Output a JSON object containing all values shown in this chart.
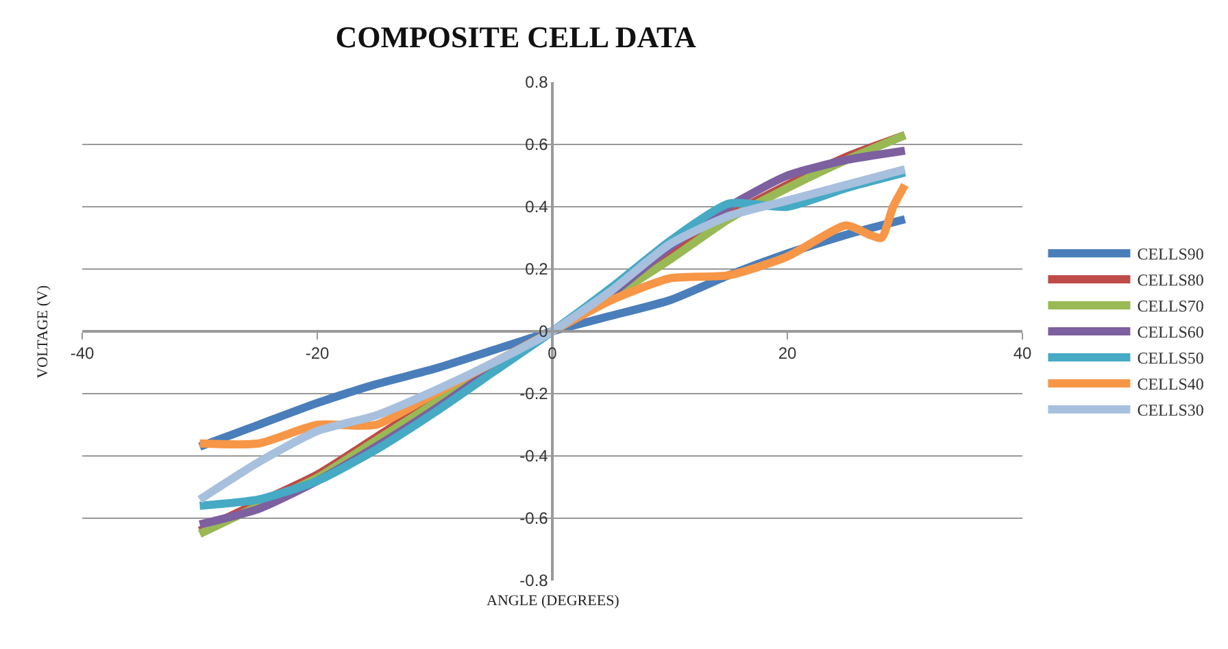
{
  "chart_data": {
    "type": "line",
    "title": "COMPOSITE CELL DATA",
    "xlabel": "ANGLE (DEGREES)",
    "ylabel": "VOLTAGE (V)",
    "xlim": [
      -40,
      40
    ],
    "xticks": [
      -40,
      -20,
      0,
      20,
      40
    ],
    "ylim": [
      -0.8,
      0.8
    ],
    "yticks": [
      -0.8,
      -0.6,
      -0.4,
      -0.2,
      0,
      0.2,
      0.4,
      0.6,
      0.8
    ],
    "grid": "y",
    "legend": "right",
    "marker": "none",
    "line_style": "solid",
    "x": [
      -30,
      -25,
      -20,
      -15,
      -10,
      -5,
      0,
      5,
      10,
      15,
      20,
      25,
      30
    ],
    "series": [
      {
        "name": "CELLS90",
        "color": "#4a7ebb",
        "values": [
          -0.37,
          -0.3,
          -0.23,
          -0.17,
          -0.12,
          -0.06,
          0,
          0.05,
          0.1,
          0.18,
          0.25,
          0.31,
          0.36
        ]
      },
      {
        "name": "CELLS80",
        "color": "#be4b48",
        "values": [
          -0.64,
          -0.55,
          -0.46,
          -0.34,
          -0.22,
          -0.11,
          0,
          0.12,
          0.24,
          0.37,
          0.47,
          0.56,
          0.63
        ]
      },
      {
        "name": "CELLS70",
        "color": "#98b954",
        "values": [
          -0.65,
          -0.56,
          -0.47,
          -0.35,
          -0.23,
          -0.11,
          0,
          0.11,
          0.23,
          0.36,
          0.46,
          0.55,
          0.63
        ]
      },
      {
        "name": "CELLS60",
        "color": "#7d60a0",
        "values": [
          -0.62,
          -0.57,
          -0.48,
          -0.37,
          -0.25,
          -0.12,
          0,
          0.12,
          0.27,
          0.4,
          0.5,
          0.55,
          0.58
        ]
      },
      {
        "name": "CELLS50",
        "color": "#46aac5",
        "values": [
          -0.56,
          -0.54,
          -0.48,
          -0.38,
          -0.26,
          -0.13,
          0,
          0.14,
          0.29,
          0.41,
          0.4,
          0.46,
          0.51
        ]
      },
      {
        "name": "CELLS40",
        "color": "#f79646",
        "x": [
          -30,
          -25,
          -20,
          -15,
          -10,
          -5,
          0,
          5,
          10,
          15,
          20,
          25,
          27,
          28,
          29,
          30
        ],
        "values": [
          -0.36,
          -0.36,
          -0.3,
          -0.3,
          -0.2,
          -0.1,
          0,
          0.1,
          0.17,
          0.18,
          0.24,
          0.34,
          0.31,
          0.3,
          0.4,
          0.47
        ]
      },
      {
        "name": "CELLS30",
        "color": "#a7c0de",
        "values": [
          -0.54,
          -0.42,
          -0.32,
          -0.27,
          -0.19,
          -0.1,
          0,
          0.13,
          0.28,
          0.37,
          0.42,
          0.47,
          0.52
        ]
      }
    ]
  }
}
